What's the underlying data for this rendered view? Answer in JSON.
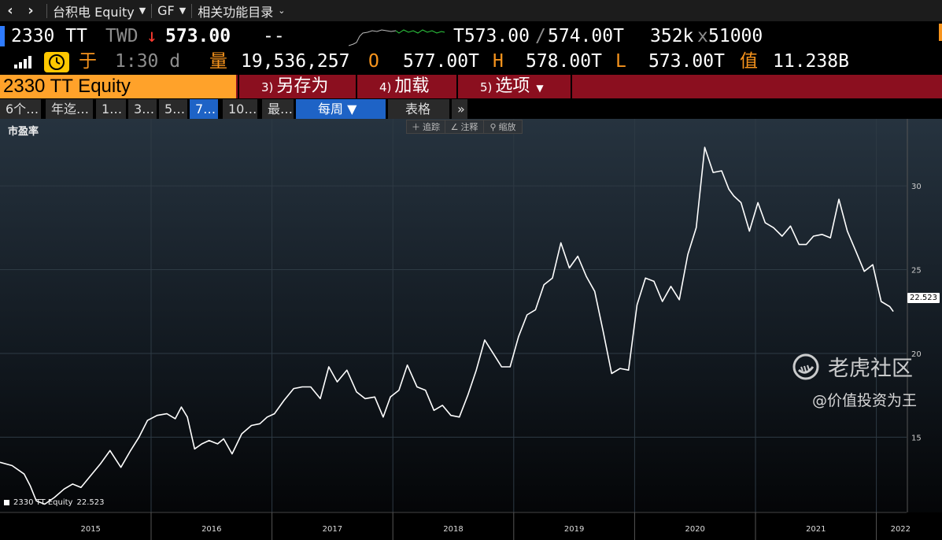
{
  "navbar": {
    "security_dropdown": "台积电 Equity",
    "gf_dropdown": "GF",
    "related_menu": "相关功能目录"
  },
  "quote": {
    "ticker": "2330 TT",
    "currency": "TWD",
    "direction_arrow": "↓",
    "last_price": "573.00",
    "change": "--",
    "bid": "T573.00",
    "ask_sep": "/",
    "ask": "574.00T",
    "size": "352k",
    "size_x": "x",
    "size2": "51000",
    "time_prefix": "于",
    "time": "1:30 d",
    "volume_label": "量",
    "volume": "19,536,257",
    "open_label": "O",
    "open": "577.00T",
    "high_label": "H",
    "high": "578.00T",
    "low_label": "L",
    "low": "573.00T",
    "value_label": "值",
    "value": "11.238B"
  },
  "function_row": {
    "ticker_input": "2330 TT Equity",
    "buttons": [
      {
        "num": "3)",
        "label": "另存为"
      },
      {
        "num": "4)",
        "label": "加载"
      },
      {
        "num": "5)",
        "label": "选项"
      }
    ]
  },
  "tabs": [
    {
      "label": "6个…"
    },
    {
      "label": "年迄…"
    },
    {
      "label": "1…"
    },
    {
      "label": "3…"
    },
    {
      "label": "5…"
    },
    {
      "label": "7…"
    },
    {
      "label": "10…"
    },
    {
      "label": "最…"
    },
    {
      "label": "每周 ▼"
    },
    {
      "label": "表格"
    },
    {
      "label": "»"
    }
  ],
  "active_tab_index": 5,
  "chart_toolbar": {
    "track": "追踪",
    "annotate": "注释",
    "zoom": "缩放"
  },
  "colors": {
    "accent_orange": "#f7941d",
    "function_red": "#8b0f1f",
    "tab_active": "#1e63c6",
    "series": "#ffffff"
  },
  "chart_data": {
    "type": "line",
    "title": "市盈率",
    "xlabel": "",
    "ylabel": "",
    "x_ticks": [
      "2015",
      "2016",
      "2017",
      "2018",
      "2019",
      "2020",
      "2021",
      "2022"
    ],
    "y_ticks": [
      15,
      20,
      25,
      30
    ],
    "ylim": [
      10.6,
      34
    ],
    "xlim": [
      2014.75,
      2022.25
    ],
    "grid": true,
    "legend_position": "bottom-left",
    "series": [
      {
        "name": "2330 TT Equity",
        "last_value": "22.523",
        "x": [
          2014.75,
          2014.85,
          2014.95,
          2015.0,
          2015.05,
          2015.12,
          2015.2,
          2015.28,
          2015.35,
          2015.42,
          2015.5,
          2015.58,
          2015.66,
          2015.75,
          2015.83,
          2015.9,
          2015.97,
          2016.05,
          2016.13,
          2016.2,
          2016.25,
          2016.3,
          2016.36,
          2016.42,
          2016.48,
          2016.55,
          2016.6,
          2016.67,
          2016.75,
          2016.83,
          2016.9,
          2016.96,
          2017.02,
          2017.1,
          2017.18,
          2017.25,
          2017.32,
          2017.4,
          2017.47,
          2017.54,
          2017.62,
          2017.7,
          2017.77,
          2017.85,
          2017.92,
          2017.98,
          2018.05,
          2018.12,
          2018.2,
          2018.27,
          2018.34,
          2018.41,
          2018.48,
          2018.55,
          2018.62,
          2018.69,
          2018.76,
          2018.83,
          2018.9,
          2018.97,
          2019.04,
          2019.11,
          2019.18,
          2019.25,
          2019.32,
          2019.39,
          2019.46,
          2019.53,
          2019.6,
          2019.67,
          2019.74,
          2019.81,
          2019.88,
          2019.95,
          2020.02,
          2020.09,
          2020.16,
          2020.23,
          2020.3,
          2020.37,
          2020.44,
          2020.51,
          2020.58,
          2020.65,
          2020.72,
          2020.78,
          2020.82,
          2020.88,
          2020.95,
          2021.02,
          2021.08,
          2021.15,
          2021.22,
          2021.29,
          2021.36,
          2021.42,
          2021.48,
          2021.55,
          2021.62,
          2021.69,
          2021.76,
          2021.83,
          2021.9,
          2021.97,
          2022.04,
          2022.11,
          2022.14
        ],
        "values": [
          13.5,
          13.3,
          12.8,
          12.1,
          11.2,
          11.0,
          11.4,
          11.9,
          12.2,
          12.0,
          12.7,
          13.4,
          14.2,
          13.2,
          14.2,
          15.0,
          16.0,
          16.3,
          16.4,
          16.1,
          16.8,
          16.2,
          14.3,
          14.6,
          14.8,
          14.6,
          14.9,
          14.0,
          15.2,
          15.7,
          15.8,
          16.2,
          16.4,
          17.2,
          17.9,
          18.0,
          18.0,
          17.3,
          19.2,
          18.3,
          19.0,
          17.7,
          17.3,
          17.4,
          16.2,
          17.4,
          17.8,
          19.3,
          18.0,
          17.8,
          16.6,
          16.9,
          16.3,
          16.2,
          17.5,
          19.0,
          20.8,
          20.0,
          19.2,
          19.2,
          21.0,
          22.3,
          22.6,
          24.1,
          24.5,
          26.6,
          25.1,
          25.8,
          24.6,
          23.7,
          21.3,
          18.8,
          19.1,
          19.0,
          22.9,
          24.5,
          24.3,
          23.1,
          24.0,
          23.2,
          25.9,
          27.5,
          32.3,
          30.8,
          30.9,
          29.8,
          29.4,
          29.0,
          27.3,
          29.0,
          27.8,
          27.5,
          27.0,
          27.6,
          26.5,
          26.5,
          27.0,
          27.1,
          26.9,
          29.2,
          27.3,
          26.1,
          24.9,
          25.3,
          23.1,
          22.8,
          22.5
        ]
      }
    ]
  },
  "watermark": {
    "brand": "老虎社区",
    "handle": "@价值投资为王"
  }
}
